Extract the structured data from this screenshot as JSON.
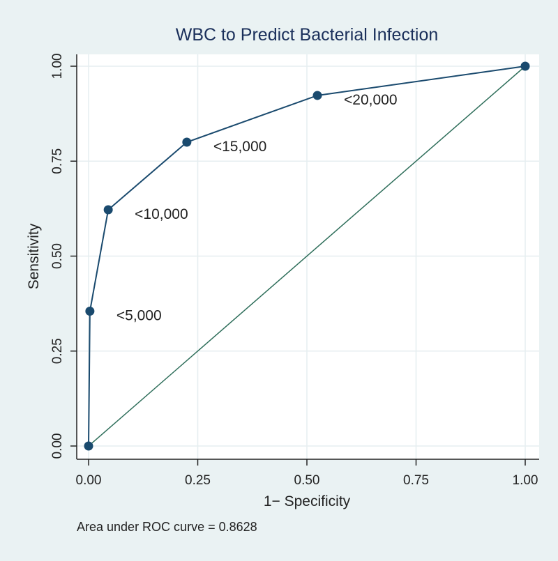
{
  "chart_data": {
    "type": "line",
    "title": "WBC to Predict Bacterial Infection",
    "xlabel": "1− Specificity",
    "ylabel": "Sensitivity",
    "xlim": [
      0,
      1
    ],
    "ylim": [
      0,
      1
    ],
    "xticks": [
      "0.00",
      "0.25",
      "0.50",
      "0.75",
      "1.00"
    ],
    "yticks": [
      "0.00",
      "0.25",
      "0.50",
      "0.75",
      "1.00"
    ],
    "grid": true,
    "series": [
      {
        "points": [
          {
            "x": 0.0,
            "y": 0.0,
            "label": ""
          },
          {
            "x": 0.003,
            "y": 0.355,
            "label": "<5,000"
          },
          {
            "x": 0.045,
            "y": 0.622,
            "label": "<10,000"
          },
          {
            "x": 0.225,
            "y": 0.8,
            "label": "<15,000"
          },
          {
            "x": 0.524,
            "y": 0.923,
            "label": "<20,000"
          },
          {
            "x": 1.0,
            "y": 1.0,
            "label": ""
          }
        ],
        "color": "#1a4a6e"
      },
      {
        "points": [
          {
            "x": 0,
            "y": 0
          },
          {
            "x": 1,
            "y": 1
          }
        ],
        "color": "#2e6e5a"
      }
    ],
    "note": "Area under ROC curve = 0.8628"
  },
  "colors": {
    "background": "#eaf2f3",
    "plot": "#ffffff",
    "title": "#1a2f5a",
    "grid": "#e6eef0"
  }
}
